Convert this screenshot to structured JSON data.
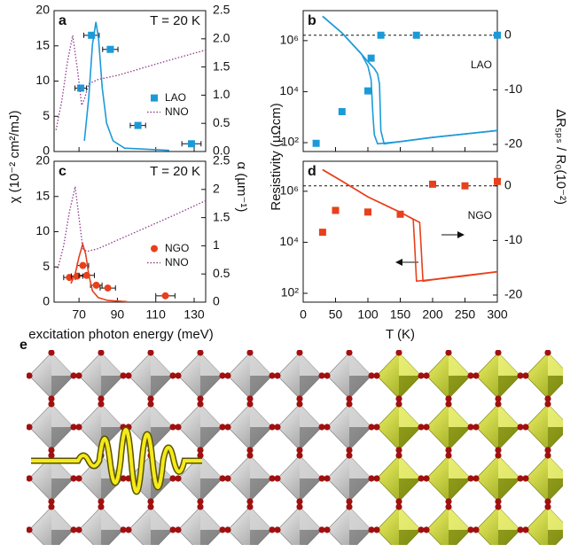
{
  "chart_data": [
    {
      "type": "scatter",
      "label": "a",
      "annotation": "T = 20 K",
      "ylabel": "χ (10⁻² cm²/mJ)",
      "y2label": "α (µm⁻¹)",
      "xlim": [
        57,
        136
      ],
      "xticks": [
        70,
        90,
        110,
        130
      ],
      "xticklabels": false,
      "ylim": [
        0,
        20
      ],
      "yticks": [
        0,
        5,
        10,
        15,
        20
      ],
      "y2lim": [
        0,
        2.5
      ],
      "y2ticks": [
        {
          "value": 0,
          "label": "0.0"
        },
        0.5,
        {
          "value": 1,
          "label": "1.0"
        },
        1.5,
        {
          "value": 2,
          "label": "2.0"
        },
        2.5
      ],
      "legend": "right",
      "series": [
        {
          "name": "LAO",
          "style": "square",
          "color": "#1c9ad8",
          "x": [
            76.5,
            86.3,
            70.9,
            100.7,
            128.6
          ],
          "values": [
            16.5,
            14.5,
            9,
            3.7,
            1.1
          ],
          "xerr": [
            4,
            4,
            3,
            4,
            5
          ]
        },
        {
          "style": "line",
          "color": "#1c9ad8",
          "axis": "y2",
          "x": [
            72.8,
            75.1,
            77,
            78.8,
            80.2,
            82.1,
            84.4,
            87.7,
            93.7,
            117
          ],
          "values": [
            0.19,
            0.97,
            1.9,
            2.3,
            2.0,
            1.13,
            0.5,
            0.19,
            0.06,
            0.02
          ]
        },
        {
          "name": "NNO",
          "style": "dotted",
          "color": "#8e3a8e",
          "axis": "y2",
          "x": [
            58,
            61,
            64,
            66.7,
            69,
            71.4,
            73,
            75,
            80,
            90,
            100,
            110,
            120,
            136
          ],
          "values": [
            0.38,
            0.9,
            1.6,
            2.06,
            1.5,
            0.82,
            0.95,
            1.2,
            1.28,
            1.35,
            1.45,
            1.55,
            1.65,
            1.8
          ]
        }
      ]
    },
    {
      "type": "scatter",
      "label": "b",
      "annotation": "LAO",
      "ylog": true,
      "ylabel": "Resistivity (µΩcm)",
      "y2label": "ΔR₅ₚₛ / R₀(10⁻²)",
      "xlim": [
        0,
        300
      ],
      "xticks": [
        0,
        50,
        100,
        150,
        200,
        250,
        300
      ],
      "xticklabels": false,
      "ylim": [
        45,
        15000000
      ],
      "yticks": [
        {
          "value": 100,
          "label": "10²"
        },
        {
          "value": 10000,
          "label": "10⁴"
        },
        {
          "value": 1000000,
          "label": "10⁶"
        }
      ],
      "y2lim": [
        -21.3,
        4.5
      ],
      "y2ticks": [
        -20,
        -10,
        0
      ],
      "refline_y2": 0,
      "series": [
        {
          "style": "square",
          "color": "#1c9ad8",
          "axis": "y2",
          "x": [
            20,
            60,
            100,
            105,
            120,
            175,
            300
          ],
          "values": [
            -19.8,
            -14,
            -10.2,
            -4.2,
            0,
            0,
            0
          ]
        },
        {
          "style": "line",
          "color": "#1c9ad8",
          "x": [
            30,
            60,
            90,
            100,
            105,
            108,
            110,
            115,
            150,
            200,
            250,
            300
          ],
          "values": [
            9000000,
            2000000,
            300000,
            100000,
            30000,
            1000,
            200,
            90,
            110,
            160,
            220,
            300
          ]
        },
        {
          "style": "line",
          "color": "#1c9ad8",
          "x": [
            30,
            60,
            90,
            100,
            110,
            115,
            118,
            120,
            125,
            150,
            200,
            250,
            300
          ],
          "values": [
            9000000,
            2000000,
            300000,
            150000,
            80000,
            50000,
            20000,
            300,
            90,
            110,
            160,
            220,
            300
          ]
        }
      ]
    },
    {
      "type": "scatter",
      "label": "c",
      "annotation": "T = 20 K",
      "xlabel": "excitation photon energy (meV)",
      "xlim": [
        57,
        136
      ],
      "xticks": [
        70,
        90,
        110,
        130
      ],
      "ylim": [
        0,
        20
      ],
      "yticks": [
        0,
        5,
        10,
        15,
        20
      ],
      "y2lim": [
        0,
        2.5
      ],
      "y2ticks": [
        0,
        0.5,
        1,
        1.5,
        2,
        2.5
      ],
      "legend": "right",
      "series": [
        {
          "name": "NGO",
          "style": "circle",
          "color": "#e8401c",
          "x": [
            65,
            69,
            72,
            74,
            79,
            85,
            115
          ],
          "values": [
            3.5,
            3.7,
            5.2,
            3.8,
            2.4,
            2.0,
            0.9
          ],
          "xerr": [
            3,
            3,
            3,
            4,
            3,
            4,
            5
          ]
        },
        {
          "style": "line",
          "color": "#e8401c",
          "axis": "y2",
          "x": [
            65.8,
            68,
            70,
            71.9,
            73.5,
            75,
            77,
            80,
            85,
            95
          ],
          "values": [
            0.33,
            0.5,
            0.8,
            1.03,
            0.85,
            0.5,
            0.2,
            0.08,
            0.03,
            0.01
          ]
        },
        {
          "name": "NNO",
          "style": "dotted",
          "color": "#8e3a8e",
          "axis": "y2",
          "x": [
            59,
            62,
            65,
            68,
            70,
            72,
            74,
            80,
            90,
            100,
            110,
            120,
            136
          ],
          "values": [
            0.6,
            1.0,
            1.6,
            2.05,
            1.5,
            0.95,
            0.9,
            0.95,
            1.1,
            1.25,
            1.4,
            1.55,
            1.8
          ]
        }
      ]
    },
    {
      "type": "scatter",
      "label": "d",
      "annotation": "NGO",
      "ylog": true,
      "xlabel": "T (K)",
      "xlim": [
        0,
        300
      ],
      "xticks": [
        0,
        50,
        100,
        150,
        200,
        250,
        300
      ],
      "ylim": [
        45,
        15000000
      ],
      "yticks": [
        {
          "value": 100,
          "label": "10²"
        },
        {
          "value": 10000,
          "label": "10⁴"
        },
        {
          "value": 1000000,
          "label": "10⁶"
        }
      ],
      "y2lim": [
        -21.3,
        4.5
      ],
      "y2ticks": [
        -20,
        -10,
        0
      ],
      "refline_y2": 0,
      "series": [
        {
          "style": "square",
          "color": "#e8401c",
          "axis": "y2",
          "x": [
            30,
            50,
            100,
            150,
            200,
            250,
            300
          ],
          "values": [
            -8.5,
            -4.5,
            -4.8,
            -5.2,
            0.3,
            0,
            0.8
          ]
        },
        {
          "style": "line",
          "color": "#e8401c",
          "x": [
            30,
            60,
            100,
            150,
            170,
            172,
            175,
            200,
            250,
            300
          ],
          "values": [
            7000000,
            2500000,
            600000,
            150000,
            80000,
            10000,
            300,
            350,
            500,
            700
          ]
        },
        {
          "style": "line",
          "color": "#e8401c",
          "x": [
            30,
            60,
            100,
            150,
            180,
            182,
            185,
            200,
            250,
            300
          ],
          "values": [
            7000000,
            2500000,
            600000,
            150000,
            60000,
            8000,
            300,
            340,
            480,
            700
          ]
        }
      ]
    }
  ],
  "panel_e": {
    "label": "e"
  }
}
